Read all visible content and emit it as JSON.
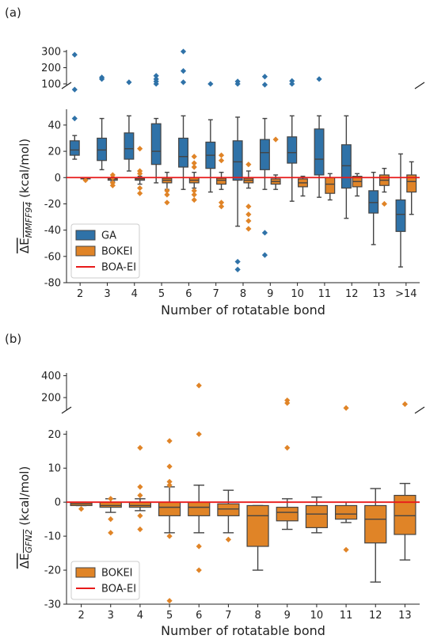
{
  "colors": {
    "ga": "#2f72a8",
    "bokei": "#e08427",
    "boa": "#e81a1a",
    "edge": "#444444"
  },
  "chart_data": [
    {
      "panel_label": "(a)",
      "type": "box",
      "xlabel": "Number of rotatable bond",
      "ylabel_main": "ΔE",
      "ylabel_sub": "MMFF94",
      "ylabel_unit": " (kcal/mol)",
      "categories": [
        "2",
        "3",
        "4",
        "5",
        "6",
        "7",
        "8",
        "9",
        "10",
        "11",
        "12",
        "13",
        ">14"
      ],
      "broken_axis": true,
      "upper_ylim": [
        90,
        310
      ],
      "upper_yticks": [
        100,
        200,
        300
      ],
      "lower_ylim": [
        -80,
        52
      ],
      "lower_yticks": [
        -80,
        -60,
        -40,
        -20,
        0,
        20,
        40
      ],
      "reference_line": {
        "name": "BOA-EI",
        "y": 0
      },
      "legend": {
        "position": "lower-left",
        "entries": [
          "GA",
          "BOKEI",
          "BOA-EI"
        ]
      },
      "series": [
        {
          "name": "GA",
          "color": "ga",
          "boxes": [
            {
              "q1": 17,
              "med": 21,
              "q3": 28,
              "wlo": 14,
              "whi": 32,
              "out": [
                45,
                280,
                65
              ]
            },
            {
              "q1": 13,
              "med": 21,
              "q3": 30,
              "wlo": 6,
              "whi": 45,
              "out": [
                130,
                140
              ]
            },
            {
              "q1": 14,
              "med": 22,
              "q3": 34,
              "wlo": 5,
              "whi": 47,
              "out": [
                110
              ]
            },
            {
              "q1": 10,
              "med": 20,
              "q3": 41,
              "wlo": -4,
              "whi": 45,
              "out": [
                100,
                115,
                130,
                150
              ]
            },
            {
              "q1": 8,
              "med": 16,
              "q3": 30,
              "wlo": -9,
              "whi": 47,
              "out": [
                110,
                180,
                300
              ]
            },
            {
              "q1": 7,
              "med": 17,
              "q3": 27,
              "wlo": -11,
              "whi": 44,
              "out": [
                100
              ]
            },
            {
              "q1": -2,
              "med": 12,
              "q3": 28,
              "wlo": -37,
              "whi": 46,
              "out": [
                -64,
                -70,
                100,
                115
              ]
            },
            {
              "q1": 6,
              "med": 19,
              "q3": 29,
              "wlo": -9,
              "whi": 45,
              "out": [
                -42,
                -59,
                95,
                145
              ]
            },
            {
              "q1": 11,
              "med": 19,
              "q3": 31,
              "wlo": -18,
              "whi": 47,
              "out": [
                100,
                118
              ]
            },
            {
              "q1": 2,
              "med": 14,
              "q3": 37,
              "wlo": -15,
              "whi": 47,
              "out": [
                130
              ]
            },
            {
              "q1": -8,
              "med": 9,
              "q3": 25,
              "wlo": -31,
              "whi": 47,
              "out": []
            },
            {
              "q1": -27,
              "med": -19,
              "q3": -10,
              "wlo": -51,
              "whi": 4,
              "out": []
            },
            {
              "q1": -41,
              "med": -28,
              "q3": -17,
              "wlo": -68,
              "whi": 18,
              "out": []
            }
          ]
        },
        {
          "name": "BOKEI",
          "color": "bokei",
          "boxes": [
            {
              "q1": -1,
              "med": -0.5,
              "q3": 0,
              "wlo": -1,
              "whi": 0,
              "out": [
                -2
              ]
            },
            {
              "q1": -2,
              "med": -1,
              "q3": -0.5,
              "wlo": -3,
              "whi": 0,
              "out": [
                2,
                0,
                -4,
                -6
              ]
            },
            {
              "q1": -2,
              "med": -1,
              "q3": -0.5,
              "wlo": -5,
              "whi": 1,
              "out": [
                22,
                5,
                3,
                -8,
                -12
              ]
            },
            {
              "q1": -4,
              "med": -2,
              "q3": -0.5,
              "wlo": -9,
              "whi": 4,
              "out": [
                -10,
                -13,
                -19
              ]
            },
            {
              "q1": -4,
              "med": -2,
              "q3": 0,
              "wlo": -8,
              "whi": 4,
              "out": [
                16,
                11,
                8,
                -10,
                -13,
                -17
              ]
            },
            {
              "q1": -5,
              "med": -2,
              "q3": -0.5,
              "wlo": -9,
              "whi": 4,
              "out": [
                17,
                13,
                -19,
                -22
              ]
            },
            {
              "q1": -4,
              "med": -2,
              "q3": -0.5,
              "wlo": -8,
              "whi": 5,
              "out": [
                10,
                -22,
                -28,
                -33,
                -39
              ]
            },
            {
              "q1": -5,
              "med": -3,
              "q3": -1,
              "wlo": -9,
              "whi": 2,
              "out": [
                29
              ]
            },
            {
              "q1": -7,
              "med": -4,
              "q3": -1,
              "wlo": -14,
              "whi": 1,
              "out": []
            },
            {
              "q1": -12,
              "med": -5,
              "q3": 0,
              "wlo": -17,
              "whi": 3,
              "out": []
            },
            {
              "q1": -7,
              "med": -3,
              "q3": 1,
              "wlo": -14,
              "whi": 3,
              "out": []
            },
            {
              "q1": -6,
              "med": -2,
              "q3": 2,
              "wlo": -11,
              "whi": 7,
              "out": [
                -20
              ]
            },
            {
              "q1": -11,
              "med": -3,
              "q3": 2,
              "wlo": -28,
              "whi": 12,
              "out": []
            }
          ]
        }
      ]
    },
    {
      "panel_label": "(b)",
      "type": "box",
      "xlabel": "Number of rotatable bond",
      "ylabel_main": "ΔE",
      "ylabel_sub": "GFN2",
      "ylabel_unit": " (kcal/mol)",
      "categories": [
        "2",
        "3",
        "4",
        "5",
        "6",
        "7",
        "8",
        "9",
        "10",
        "11",
        "12",
        "13"
      ],
      "broken_axis": true,
      "upper_ylim": [
        85,
        425
      ],
      "upper_yticks": [
        200,
        400
      ],
      "lower_ylim": [
        -30,
        21
      ],
      "lower_yticks": [
        -30,
        -20,
        -10,
        0,
        10,
        20
      ],
      "reference_line": {
        "name": "BOA-EI",
        "y": 0
      },
      "legend": {
        "position": "lower-left",
        "entries": [
          "BOKEI",
          "BOA-EI"
        ]
      },
      "series": [
        {
          "name": "BOKEI",
          "color": "bokei",
          "boxes": [
            {
              "q1": -1,
              "med": -0.5,
              "q3": 0,
              "wlo": -1,
              "whi": 0,
              "out": [
                -2
              ]
            },
            {
              "q1": -1.5,
              "med": -1,
              "q3": 0,
              "wlo": -3,
              "whi": 1,
              "out": [
                -5,
                -9,
                1
              ]
            },
            {
              "q1": -1.5,
              "med": -1,
              "q3": 0,
              "wlo": -2.5,
              "whi": 1,
              "out": [
                16,
                4.5,
                2,
                -4,
                -8
              ]
            },
            {
              "q1": -4,
              "med": -1.5,
              "q3": 0,
              "wlo": -9,
              "whi": 4.5,
              "out": [
                18,
                10.5,
                6,
                5,
                -10,
                -29
              ]
            },
            {
              "q1": -4,
              "med": -1.5,
              "q3": 0,
              "wlo": -9,
              "whi": 5,
              "out": [
                20,
                -13,
                -20,
                310
              ]
            },
            {
              "q1": -4,
              "med": -2,
              "q3": -0.5,
              "wlo": -9,
              "whi": 3.5,
              "out": [
                -11
              ]
            },
            {
              "q1": -13,
              "med": -4,
              "q3": -1,
              "wlo": -20,
              "whi": -1,
              "out": []
            },
            {
              "q1": -5.5,
              "med": -3,
              "q3": -1.5,
              "wlo": -8,
              "whi": 1,
              "out": [
                16,
                150,
                175
              ]
            },
            {
              "q1": -7.5,
              "med": -3.5,
              "q3": -1,
              "wlo": -9,
              "whi": 1.5,
              "out": []
            },
            {
              "q1": -5,
              "med": -3.5,
              "q3": -1,
              "wlo": -6,
              "whi": 0,
              "out": [
                -14,
                105
              ]
            },
            {
              "q1": -12,
              "med": -5,
              "q3": -1,
              "wlo": -23.5,
              "whi": 4,
              "out": []
            },
            {
              "q1": -9.5,
              "med": -4,
              "q3": 2,
              "wlo": -17,
              "whi": 5.5,
              "out": [
                140
              ]
            }
          ]
        }
      ]
    }
  ]
}
